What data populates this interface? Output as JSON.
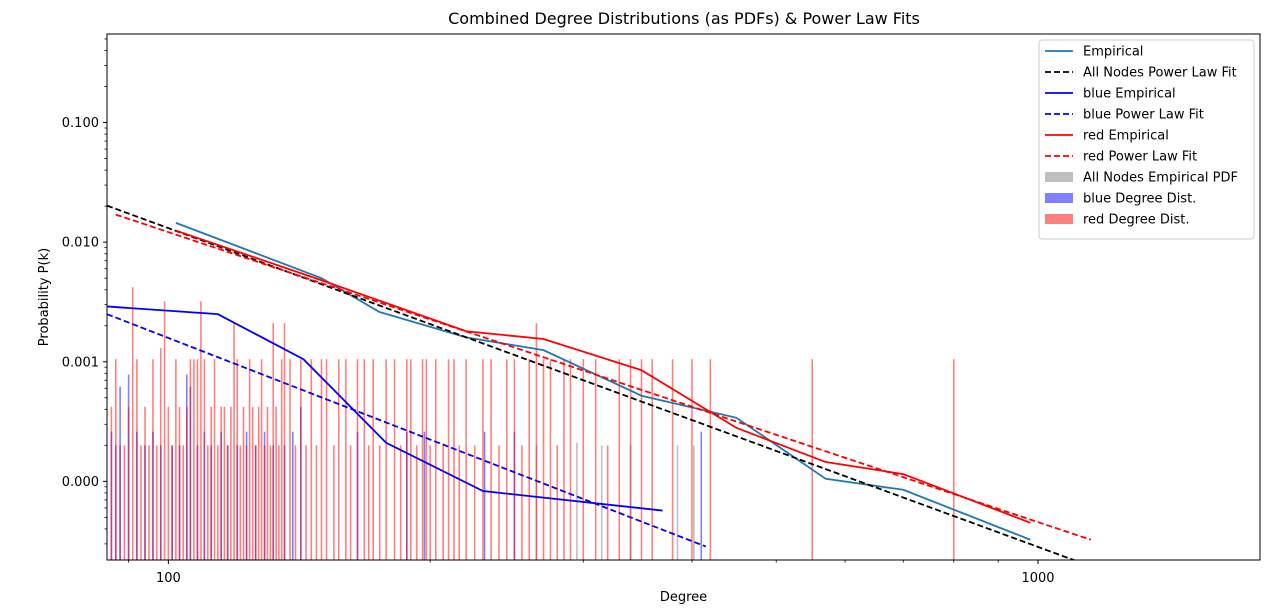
{
  "chart_data": {
    "type": "line",
    "title": "Combined Degree Distributions (as PDFs) & Power Law Fits",
    "xlabel": "Degree",
    "ylabel": "Probability P(k)",
    "xscale": "log",
    "yscale": "log",
    "xlim": [
      85,
      1800
    ],
    "ylim": [
      2.2e-05,
      0.55
    ],
    "xticks": [
      {
        "value": 100,
        "label": "100"
      },
      {
        "value": 1000,
        "label": "1000"
      }
    ],
    "yticks": [
      {
        "value": 0.0001,
        "label": "0.000"
      },
      {
        "value": 0.001,
        "label": "0.001"
      },
      {
        "value": 0.01,
        "label": "0.010"
      },
      {
        "value": 0.1,
        "label": "0.100"
      }
    ],
    "legend_position": "top-right",
    "series": [
      {
        "name": "Empirical",
        "kind": "line",
        "color": "#1f77b4",
        "dash": "solid",
        "x": [
          102,
          150,
          175,
          220,
          270,
          350,
          450,
          570,
          700,
          980
        ],
        "y": [
          0.0145,
          0.005,
          0.0026,
          0.0016,
          0.00125,
          0.00052,
          0.00034,
          0.000105,
          8.5e-05,
          3.25e-05
        ]
      },
      {
        "name": "All Nodes Power Law Fit",
        "kind": "line",
        "color": "#000000",
        "dash": "dashed",
        "x": [
          85,
          1150
        ],
        "y": [
          0.0202,
          1.95e-05
        ]
      },
      {
        "name": "blue Empirical",
        "kind": "line",
        "color": "#0000ff",
        "dash": "solid",
        "x": [
          85,
          114,
          143,
          178,
          230,
          370
        ],
        "y": [
          0.0029,
          0.0025,
          0.00105,
          0.00021,
          8.3e-05,
          5.7e-05
        ]
      },
      {
        "name": "blue Power Law Fit",
        "kind": "line",
        "color": "#0000ff",
        "dash": "dashed",
        "x": [
          85,
          415
        ],
        "y": [
          0.0025,
          2.85e-05
        ]
      },
      {
        "name": "red Empirical",
        "kind": "line",
        "color": "#ff0000",
        "dash": "solid",
        "x": [
          102,
          150,
          220,
          270,
          350,
          450,
          570,
          700,
          980
        ],
        "y": [
          0.0125,
          0.0048,
          0.0018,
          0.00155,
          0.00085,
          0.00028,
          0.000145,
          0.000115,
          4.5e-05
        ]
      },
      {
        "name": "red Power Law Fit",
        "kind": "line",
        "color": "#ff0000",
        "dash": "dashed",
        "x": [
          87,
          1150
        ],
        "y": [
          0.017,
          3.25e-05
        ]
      },
      {
        "name": "All Nodes Empirical PDF",
        "kind": "bars",
        "color": "#bfbfbf",
        "opacity": 1,
        "x": [
          265,
          295,
          315,
          340,
          385,
          402
        ],
        "y": [
          0.0002,
          0.00021,
          0.0002,
          0.0002,
          0.0002,
          0.0002
        ]
      },
      {
        "name": "blue Degree Dist.",
        "kind": "bars",
        "color": "#0000ff",
        "opacity": 0.5,
        "x": [
          86,
          87,
          88,
          90,
          92,
          94,
          96,
          98,
          101,
          103,
          105,
          106,
          108,
          110,
          112,
          115,
          117,
          120,
          123,
          126,
          129,
          132,
          136,
          139,
          142,
          165,
          188,
          197,
          231,
          250,
          410
        ],
        "y": [
          0.00026,
          0.0002,
          0.00062,
          0.00078,
          0.00026,
          0.0002,
          0.00026,
          0.0002,
          0.0002,
          0.0002,
          0.00078,
          0.00062,
          0.0002,
          0.00026,
          0.0002,
          0.00026,
          0.0002,
          0.0002,
          0.00026,
          0.0002,
          0.00026,
          0.0002,
          0.0002,
          0.00026,
          0.00042,
          0.00026,
          0.00026,
          0.00026,
          0.00026,
          0.00026,
          0.00026
        ]
      },
      {
        "name": "red Degree Dist.",
        "kind": "bars",
        "color": "#ff0000",
        "opacity": 0.5,
        "x": [
          86,
          87,
          88,
          89,
          90,
          91,
          92,
          93,
          94,
          95,
          96,
          97,
          98,
          99,
          100,
          101,
          102,
          103,
          104,
          105,
          106,
          107,
          108,
          109,
          110,
          111,
          112,
          113,
          114,
          115,
          116,
          117,
          118,
          119,
          120,
          121,
          122,
          123,
          124,
          125,
          126,
          127,
          128,
          129,
          130,
          131,
          132,
          133,
          134,
          135,
          136,
          138,
          140,
          142,
          144,
          146,
          148,
          150,
          152,
          155,
          157,
          160,
          162,
          165,
          168,
          170,
          172,
          175,
          178,
          182,
          185,
          188,
          190,
          193,
          196,
          198,
          200,
          203,
          207,
          210,
          213,
          216,
          220,
          225,
          230,
          235,
          240,
          245,
          250,
          255,
          260,
          265,
          270,
          275,
          280,
          285,
          290,
          300,
          310,
          320,
          330,
          340,
          350,
          360,
          380,
          400,
          420,
          550,
          800
        ],
        "y": [
          0.00042,
          0.00105,
          0.0002,
          0.0002,
          0.00042,
          0.0042,
          0.00105,
          0.0002,
          0.00042,
          0.0002,
          0.00105,
          0.0002,
          0.0013,
          0.0032,
          0.00042,
          0.0002,
          0.00105,
          0.00042,
          0.0002,
          0.00042,
          0.00105,
          0.00105,
          0.00105,
          0.0032,
          0.00105,
          0.0002,
          0.00042,
          0.00105,
          0.0002,
          0.00042,
          0.00042,
          0.0002,
          0.00042,
          0.0021,
          0.00105,
          0.0002,
          0.00042,
          0.0002,
          0.00105,
          0.00042,
          0.0002,
          0.00042,
          0.00105,
          0.0002,
          0.00042,
          0.0002,
          0.0021,
          0.00042,
          0.0002,
          0.00105,
          0.0021,
          0.00105,
          0.0002,
          0.00105,
          0.0002,
          0.00105,
          0.0002,
          0.00105,
          0.00105,
          0.0002,
          0.00105,
          0.00105,
          0.0002,
          0.00105,
          0.00105,
          0.0002,
          0.00105,
          0.0002,
          0.00105,
          0.00105,
          0.0002,
          0.00105,
          0.00105,
          0.0002,
          0.00105,
          0.00105,
          0.0002,
          0.00105,
          0.0002,
          0.00105,
          0.00105,
          0.0002,
          0.00105,
          0.0002,
          0.00105,
          0.00105,
          0.0002,
          0.00105,
          0.00105,
          0.0002,
          0.00105,
          0.0021,
          0.00105,
          0.00105,
          0.0002,
          0.00105,
          0.00105,
          0.00105,
          0.00105,
          0.0002,
          0.00105,
          0.00105,
          0.00105,
          0.00105,
          0.00105,
          0.00105,
          0.00105,
          0.00105,
          0.00105
        ]
      }
    ]
  }
}
